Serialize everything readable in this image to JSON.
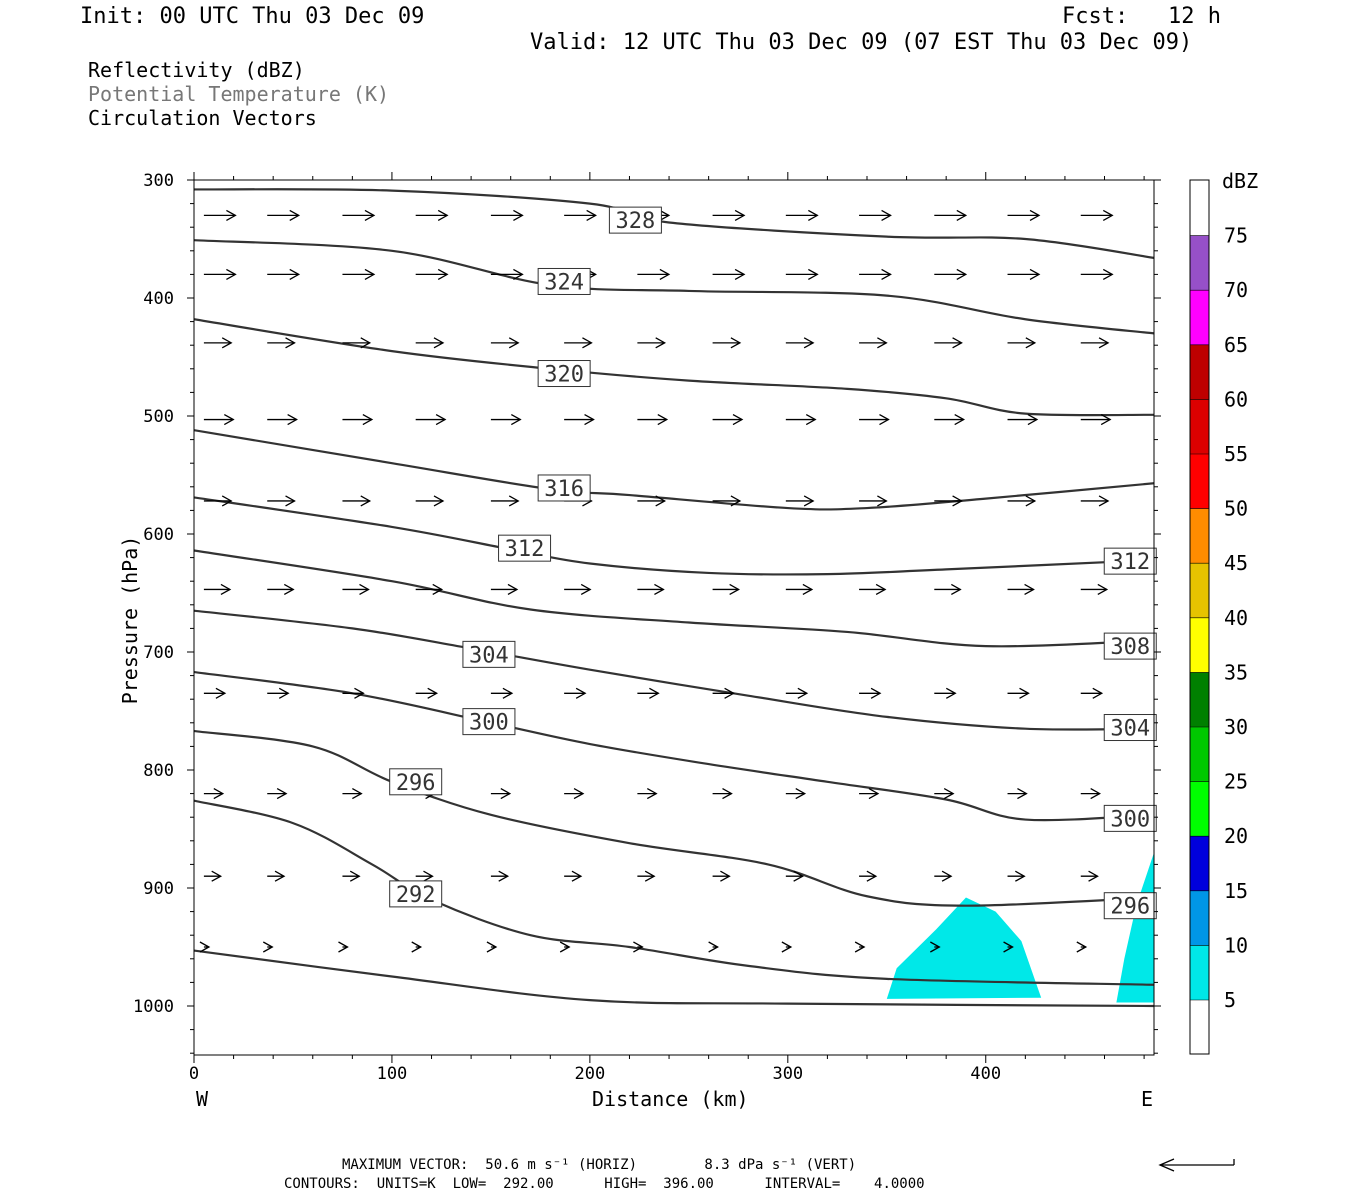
{
  "header": {
    "init": "Init: 00 UTC Thu 03 Dec 09",
    "fcst": "Fcst:   12 h",
    "valid": "Valid: 12 UTC Thu 03 Dec 09 (07 EST Thu 03 Dec 09)"
  },
  "legend_lines": [
    "Reflectivity (dBZ)",
    "Potential Temperature (K)",
    "Circulation Vectors"
  ],
  "footer": {
    "max_vector": "MAXIMUM VECTOR:  50.6 m s⁻¹ (HORIZ)        8.3 dPa s⁻¹ (VERT)",
    "contours": "CONTOURS:  UNITS=K  LOW=  292.00      HIGH=  396.00      INTERVAL=    4.0000"
  },
  "colors": {
    "contour": "#333333",
    "reflectivity_5": "#00e8e8"
  },
  "chart_data": {
    "type": "cross-section",
    "xlabel": "Distance (km)",
    "ylabel": "Pressure (hPa)",
    "xlim": [
      0,
      485
    ],
    "ylim": [
      1040,
      300
    ],
    "xticks": [
      0,
      100,
      200,
      300,
      400
    ],
    "yticks": [
      300,
      400,
      500,
      600,
      700,
      800,
      900,
      1000
    ],
    "x_end_labels": {
      "left": "W",
      "right": "E"
    },
    "colorbar": {
      "title": "dBZ",
      "levels": [
        5,
        10,
        15,
        20,
        25,
        30,
        35,
        40,
        45,
        50,
        55,
        60,
        65,
        70,
        75
      ],
      "colors": [
        "#00e8e8",
        "#0096e6",
        "#0000dc",
        "#00ff00",
        "#00c800",
        "#008000",
        "#ffff00",
        "#e6c300",
        "#ff8c00",
        "#ff0000",
        "#dc0000",
        "#be0000",
        "#ff00ff",
        "#9650c8"
      ]
    },
    "theta_contours": [
      {
        "label": "328",
        "points": [
          [
            0,
            308
          ],
          [
            100,
            309
          ],
          [
            200,
            320
          ],
          [
            240,
            336
          ],
          [
            350,
            348
          ],
          [
            420,
            350
          ],
          [
            485,
            366
          ]
        ]
      },
      {
        "label": "324",
        "points": [
          [
            0,
            351
          ],
          [
            100,
            360
          ],
          [
            180,
            389
          ],
          [
            250,
            394
          ],
          [
            350,
            398
          ],
          [
            420,
            418
          ],
          [
            485,
            430
          ]
        ]
      },
      {
        "label": "320",
        "points": [
          [
            0,
            418
          ],
          [
            100,
            445
          ],
          [
            180,
            460
          ],
          [
            250,
            470
          ],
          [
            330,
            477
          ],
          [
            380,
            485
          ],
          [
            420,
            498
          ],
          [
            485,
            499
          ]
        ]
      },
      {
        "label": "316",
        "points": [
          [
            0,
            512
          ],
          [
            100,
            540
          ],
          [
            180,
            562
          ],
          [
            220,
            567
          ],
          [
            300,
            578
          ],
          [
            340,
            578
          ],
          [
            400,
            570
          ],
          [
            485,
            557
          ]
        ]
      },
      {
        "label": "312",
        "points": [
          [
            0,
            569
          ],
          [
            100,
            594
          ],
          [
            160,
            613
          ],
          [
            200,
            625
          ],
          [
            260,
            633
          ],
          [
            320,
            634
          ],
          [
            380,
            630
          ],
          [
            485,
            622
          ]
        ]
      },
      {
        "label": "308",
        "points": [
          [
            0,
            614
          ],
          [
            100,
            640
          ],
          [
            170,
            664
          ],
          [
            250,
            675
          ],
          [
            330,
            683
          ],
          [
            400,
            695
          ],
          [
            485,
            690
          ]
        ]
      },
      {
        "label": "304",
        "points": [
          [
            0,
            665
          ],
          [
            80,
            680
          ],
          [
            140,
            697
          ],
          [
            200,
            715
          ],
          [
            280,
            737
          ],
          [
            350,
            755
          ],
          [
            420,
            765
          ],
          [
            485,
            765
          ]
        ]
      },
      {
        "label": "300",
        "points": [
          [
            0,
            717
          ],
          [
            80,
            735
          ],
          [
            150,
            760
          ],
          [
            200,
            778
          ],
          [
            260,
            795
          ],
          [
            320,
            810
          ],
          [
            380,
            825
          ],
          [
            420,
            842
          ],
          [
            485,
            838
          ]
        ]
      },
      {
        "label": "296",
        "points": [
          [
            0,
            767
          ],
          [
            60,
            780
          ],
          [
            100,
            810
          ],
          [
            150,
            838
          ],
          [
            220,
            862
          ],
          [
            290,
            880
          ],
          [
            340,
            907
          ],
          [
            390,
            915
          ],
          [
            485,
            908
          ]
        ]
      },
      {
        "label": "292",
        "points": [
          [
            0,
            826
          ],
          [
            50,
            845
          ],
          [
            90,
            880
          ],
          [
            120,
            910
          ],
          [
            170,
            940
          ],
          [
            220,
            950
          ],
          [
            280,
            966
          ],
          [
            350,
            977
          ],
          [
            485,
            982
          ]
        ]
      },
      {
        "label": "",
        "points": [
          [
            0,
            953
          ],
          [
            100,
            975
          ],
          [
            200,
            995
          ],
          [
            300,
            998
          ],
          [
            485,
            1000
          ]
        ]
      }
    ],
    "contour_label_positions": [
      {
        "label": "328",
        "x": 223,
        "p": 334
      },
      {
        "label": "324",
        "x": 187,
        "p": 386
      },
      {
        "label": "320",
        "x": 187,
        "p": 464
      },
      {
        "label": "316",
        "x": 187,
        "p": 561
      },
      {
        "label": "312",
        "x": 167,
        "p": 612
      },
      {
        "label": "312",
        "x": 473,
        "p": 623
      },
      {
        "label": "304",
        "x": 149,
        "p": 702
      },
      {
        "label": "308",
        "x": 473,
        "p": 695
      },
      {
        "label": "300",
        "x": 149,
        "p": 759
      },
      {
        "label": "304",
        "x": 473,
        "p": 764
      },
      {
        "label": "296",
        "x": 112,
        "p": 810
      },
      {
        "label": "300",
        "x": 473,
        "p": 841
      },
      {
        "label": "292",
        "x": 112,
        "p": 905
      },
      {
        "label": "296",
        "x": 473,
        "p": 915
      }
    ],
    "reflectivity_areas": [
      {
        "dbz": 5,
        "points": [
          [
            350,
            994
          ],
          [
            355,
            968
          ],
          [
            375,
            935
          ],
          [
            390,
            908
          ],
          [
            405,
            920
          ],
          [
            418,
            945
          ],
          [
            428,
            993
          ]
        ]
      },
      {
        "dbz": 5,
        "points": [
          [
            466,
            997
          ],
          [
            470,
            960
          ],
          [
            476,
            915
          ],
          [
            485,
            870
          ],
          [
            485,
            997
          ]
        ]
      }
    ],
    "vector_rows": [
      {
        "p": 330,
        "u": 0.75,
        "w": 0
      },
      {
        "p": 380,
        "u": 0.75,
        "w": 0
      },
      {
        "p": 438,
        "u": 0.65,
        "w": 0
      },
      {
        "p": 503,
        "u": 0.7,
        "w": 0
      },
      {
        "p": 572,
        "u": 0.65,
        "w": 0
      },
      {
        "p": 647,
        "u": 0.62,
        "w": 0
      },
      {
        "p": 735,
        "u": 0.5,
        "w": 0
      },
      {
        "p": 820,
        "u": 0.45,
        "w": 0
      },
      {
        "p": 890,
        "u": 0.4,
        "w": 0
      },
      {
        "p": 950,
        "u": 0.12,
        "w": 0
      }
    ],
    "vector_columns_km": [
      5,
      37,
      75,
      112,
      150,
      187,
      224,
      262,
      299,
      336,
      374,
      411,
      448
    ],
    "reference_vector": "left-pointing, bottom-right"
  }
}
